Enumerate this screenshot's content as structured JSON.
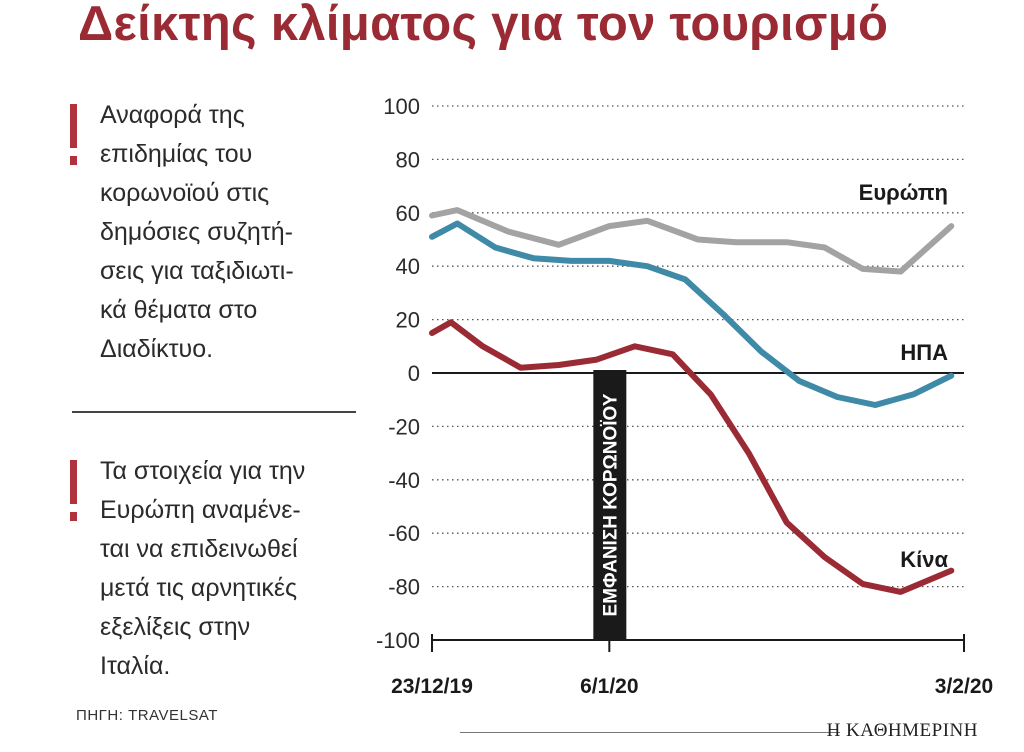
{
  "header": {
    "title": "Δείκτης κλίματος για τον τουρισμό"
  },
  "notes": [
    {
      "text": "Αναφορά της\nεπιδημίας του\nκορωνοϊού στις\nδημόσιες συζητή-\nσεις για ταξιδιωτι-\nκά θέματα στο\nΔιαδίκτυο."
    },
    {
      "text": "Τα στοιχεία για την\nΕυρώπη αναμένε-\nται να επιδεινωθεί\nμετά τις αρνητικές\nεξελίξεις στην\nΙταλία."
    }
  ],
  "footer": {
    "source": "ΠΗΓΗ: TRAVELSAT",
    "brand": "Η ΚΑΘΗΜΕΡΙΝΗ"
  },
  "chart_data": {
    "type": "line",
    "ylim": [
      -100,
      100
    ],
    "yticks": [
      100,
      80,
      60,
      40,
      20,
      0,
      -20,
      -40,
      -60,
      -80,
      -100
    ],
    "xlim": [
      0,
      42
    ],
    "xticks": [
      {
        "x": 0,
        "label": "23/12/19"
      },
      {
        "x": 14,
        "label": "6/1/20"
      },
      {
        "x": 42,
        "label": "3/2/20"
      }
    ],
    "grid": true,
    "annotation": {
      "x": 14,
      "label": "ΕΜΦΑΝΙΣΗ ΚΟΡΩΝΟΪΟΥ"
    },
    "series": [
      {
        "name": "Ευρώπη",
        "label": "Ευρώπη",
        "color": "#a3a3a3",
        "x": [
          0,
          2,
          6,
          10,
          14,
          17,
          21,
          24,
          28,
          31,
          34,
          37,
          41
        ],
        "y": [
          59,
          61,
          53,
          48,
          55,
          57,
          50,
          49,
          49,
          47,
          39,
          38,
          55
        ]
      },
      {
        "name": "ΗΠΑ",
        "label": "ΗΠΑ",
        "color": "#3f8aa6",
        "x": [
          0,
          2,
          5,
          8,
          11,
          14,
          17,
          20,
          23,
          26,
          29,
          32,
          35,
          38,
          41
        ],
        "y": [
          51,
          56,
          47,
          43,
          42,
          42,
          40,
          35,
          22,
          8,
          -3,
          -9,
          -12,
          -8,
          -1
        ]
      },
      {
        "name": "Κίνα",
        "label": "Κίνα",
        "color": "#9a2a33",
        "x": [
          0,
          1.5,
          4,
          7,
          10,
          13,
          16,
          19,
          22,
          25,
          28,
          31,
          34,
          37,
          41
        ],
        "y": [
          15,
          19,
          10,
          2,
          3,
          5,
          10,
          7,
          -8,
          -30,
          -56,
          -69,
          -79,
          -82,
          -74
        ]
      }
    ]
  }
}
